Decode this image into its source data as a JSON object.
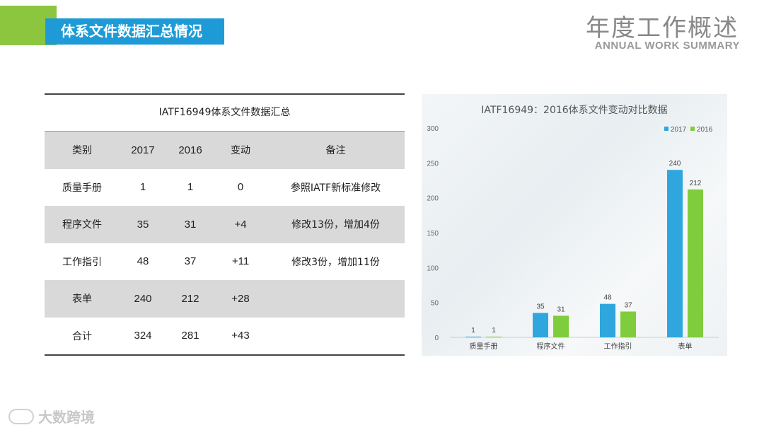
{
  "header": {
    "section_title": "体系文件数据汇总情况",
    "title": "年度工作概述",
    "subtitle": "ANNUAL WORK SUMMARY"
  },
  "table": {
    "title": "IATF16949体系文件数据汇总",
    "headers": [
      "类别",
      "2017",
      "2016",
      "变动",
      "备注"
    ],
    "rows": [
      [
        "质量手册",
        "1",
        "1",
        "0",
        "参照IATF新标准修改"
      ],
      [
        "程序文件",
        "35",
        "31",
        "+4",
        "修改13份，增加4份"
      ],
      [
        "工作指引",
        "48",
        "37",
        "+11",
        "修改3份，增加11份"
      ],
      [
        "表单",
        "240",
        "212",
        "+28",
        ""
      ],
      [
        "合计",
        "324",
        "281",
        "+43",
        ""
      ]
    ]
  },
  "chart_data": {
    "type": "bar",
    "title": "IATF16949：2016体系文件变动对比数据",
    "categories": [
      "质量手册",
      "程序文件",
      "工作指引",
      "表单"
    ],
    "series": [
      {
        "name": "2017",
        "values": [
          1,
          35,
          48,
          240
        ],
        "color": "#2fa6dd"
      },
      {
        "name": "2016",
        "values": [
          1,
          31,
          37,
          212
        ],
        "color": "#7fcd3c"
      }
    ],
    "ylim": [
      0,
      300
    ],
    "yticks": [
      0,
      50,
      100,
      150,
      200,
      250,
      300
    ],
    "legend": "top-right",
    "grid": false
  },
  "watermark": {
    "text": "大数跨境"
  },
  "colors": {
    "accent_blue": "#1e9bd7",
    "accent_green": "#8cc63f",
    "row_shade": "#d9d9d9"
  }
}
